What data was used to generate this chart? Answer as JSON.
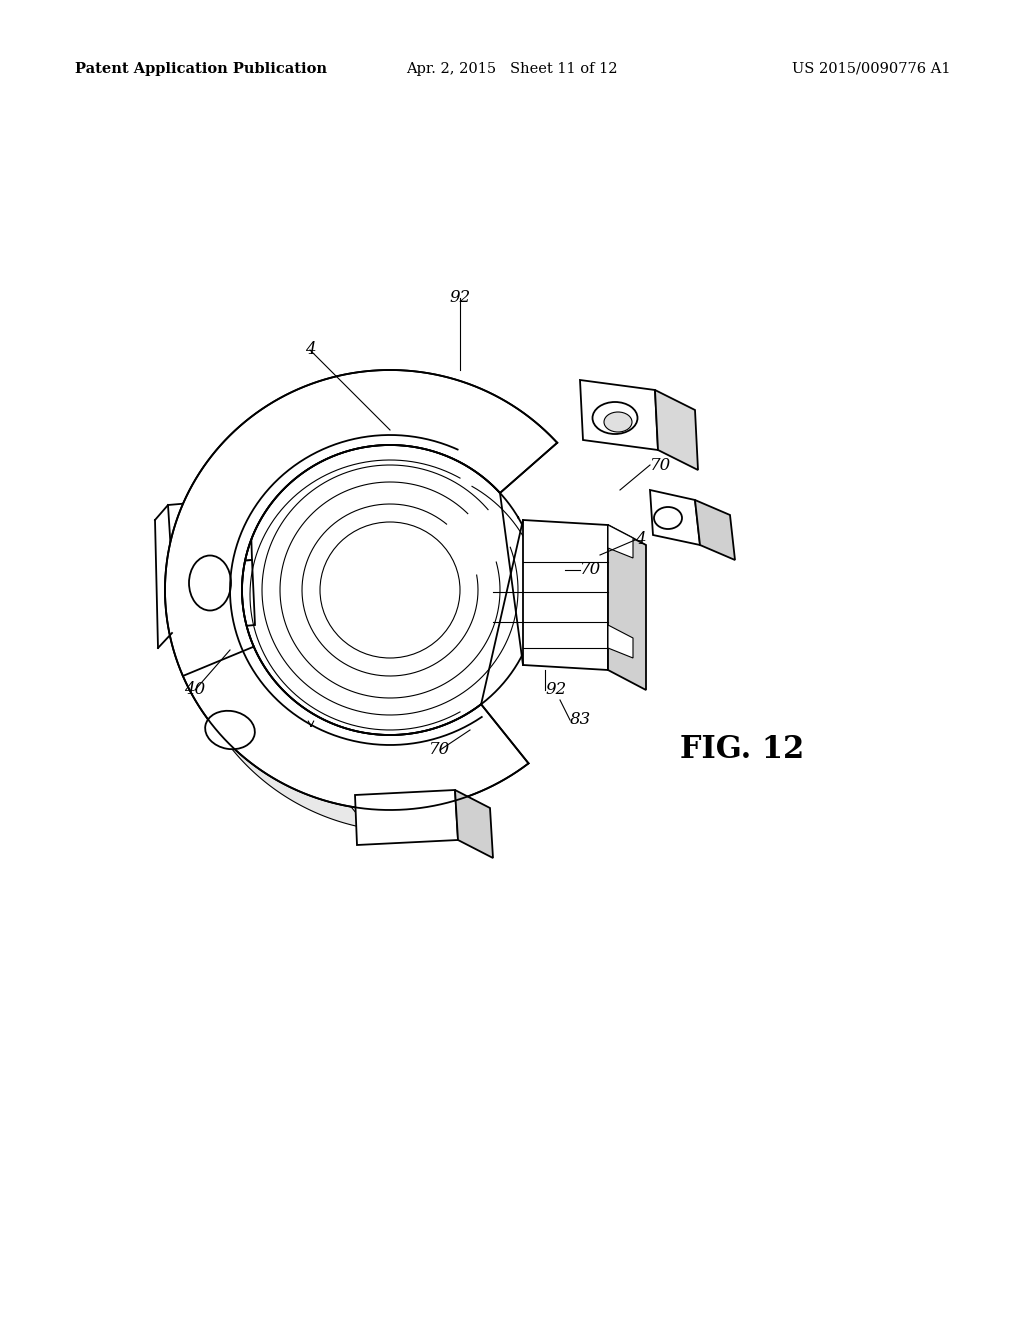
{
  "header_left": "Patent Application Publication",
  "header_middle": "Apr. 2, 2015   Sheet 11 of 12",
  "header_right": "US 2015/0090776 A1",
  "fig_label": "FIG. 12",
  "background_color": "#ffffff",
  "line_color": "#000000",
  "header_fontsize": 10.5,
  "label_fontsize": 12,
  "fig_label_fontsize": 22
}
